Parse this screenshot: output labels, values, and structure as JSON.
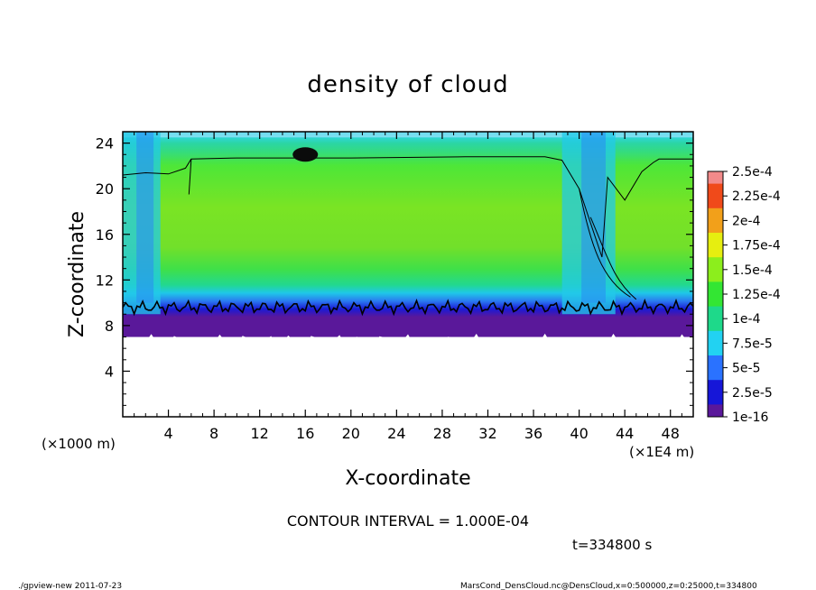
{
  "chart_data": {
    "type": "heatmap",
    "title": "density of cloud",
    "xlabel": "X-coordinate",
    "ylabel": "Z-coordinate",
    "x_unit_left": "(×1000 m)",
    "x_unit_right": "(×1E4 m)",
    "xlim": [
      0,
      50
    ],
    "ylim": [
      0,
      25
    ],
    "x_ticks": [
      "4",
      "8",
      "12",
      "16",
      "20",
      "24",
      "28",
      "32",
      "36",
      "40",
      "44",
      "48"
    ],
    "x_tick_values": [
      4,
      8,
      12,
      16,
      20,
      24,
      28,
      32,
      36,
      40,
      44,
      48
    ],
    "y_ticks": [
      "4",
      "8",
      "12",
      "16",
      "20",
      "24"
    ],
    "y_tick_values": [
      4,
      8,
      12,
      16,
      20,
      24
    ],
    "colorbar": {
      "labels": [
        "1e-16",
        "2.5e-5",
        "5e-5",
        "7.5e-5",
        "1e-4",
        "1.25e-4",
        "1.5e-4",
        "1.75e-4",
        "2e-4",
        "2.25e-4",
        "2.5e-4"
      ],
      "colors": [
        "#5a189a",
        "#1616d8",
        "#2a72ff",
        "#22d2f2",
        "#1ed98a",
        "#33e633",
        "#8cee1c",
        "#e6ee10",
        "#f2a01a",
        "#f04a1a",
        "#f28a8a"
      ]
    },
    "field": {
      "cloud_base_z": 7,
      "cloud_top_z": 24.5,
      "low_density_core": "7.5e-5 to 1e-4",
      "main_density": "1.25e-4 to 1.5e-4",
      "clear_columns_x": [
        [
          0,
          6
        ],
        [
          38.5,
          47
        ]
      ]
    },
    "contour_interval": "1.000E-04",
    "contour_note": "CONTOUR INTERVAL = 1.000E-04",
    "time_label": "t=334800 s",
    "footer_left": "./gpview-new   2011-07-23",
    "footer_right": "MarsCond_DensCloud.nc@DensCloud,x=0:500000,z=0:25000,t=334800"
  }
}
